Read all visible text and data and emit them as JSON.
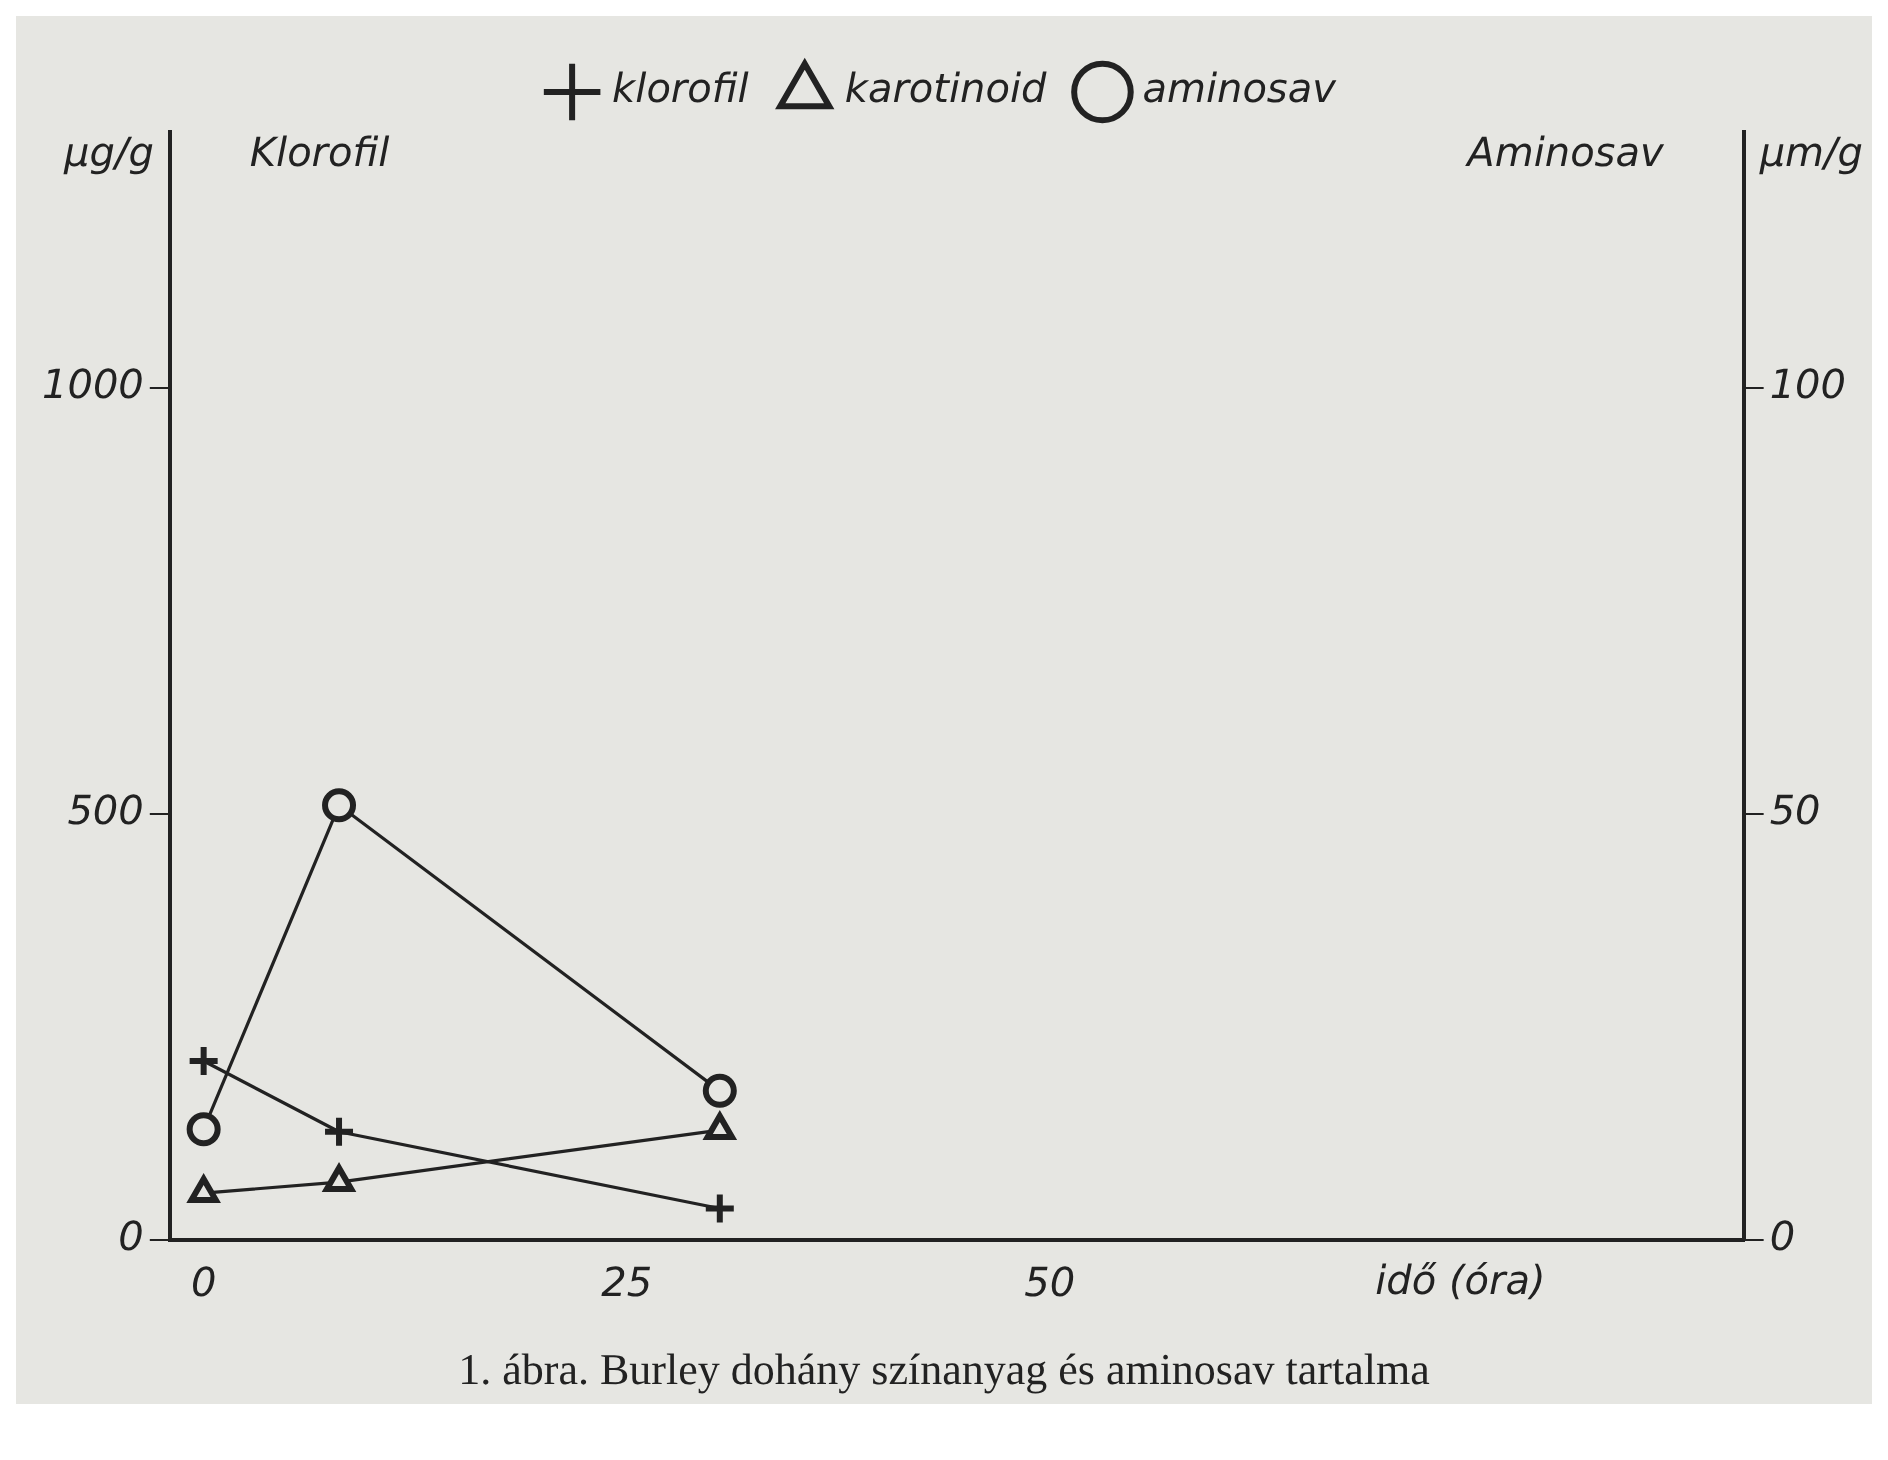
{
  "chart_data": {
    "type": "line",
    "xlabel": "idő (óra)",
    "ylabel": "µg/g",
    "y2label": "µm/g",
    "annotations": [
      "Klorofil",
      "Aminosav",
      "1. ábra. Burley dohány színanyag és aminosav tartalma"
    ],
    "xlim": [
      -2,
      91
    ],
    "xticks": [
      0,
      25,
      50
    ],
    "ylim": [
      0,
      1300
    ],
    "yticks": [
      0,
      500,
      1000
    ],
    "y2lim": [
      0,
      130
    ],
    "y2ticks": [
      0,
      50,
      100
    ],
    "grid": false,
    "legend": "top",
    "line_style": "solid",
    "series": [
      {
        "name": "klorofil",
        "color": "#222222",
        "marker": "cross",
        "x": [
          0,
          8,
          30.5
        ],
        "values": [
          210,
          127,
          37
        ]
      },
      {
        "name": "karotinoid",
        "color": "#222222",
        "marker": "triangle",
        "x": [
          0,
          8,
          30.5
        ],
        "values": [
          55,
          68,
          129
        ]
      },
      {
        "name": "aminosav",
        "color": "#222222",
        "marker": "circle",
        "axis": "y2",
        "x": [
          0,
          8,
          30.5
        ],
        "values": [
          13,
          51,
          17.5
        ]
      }
    ]
  }
}
